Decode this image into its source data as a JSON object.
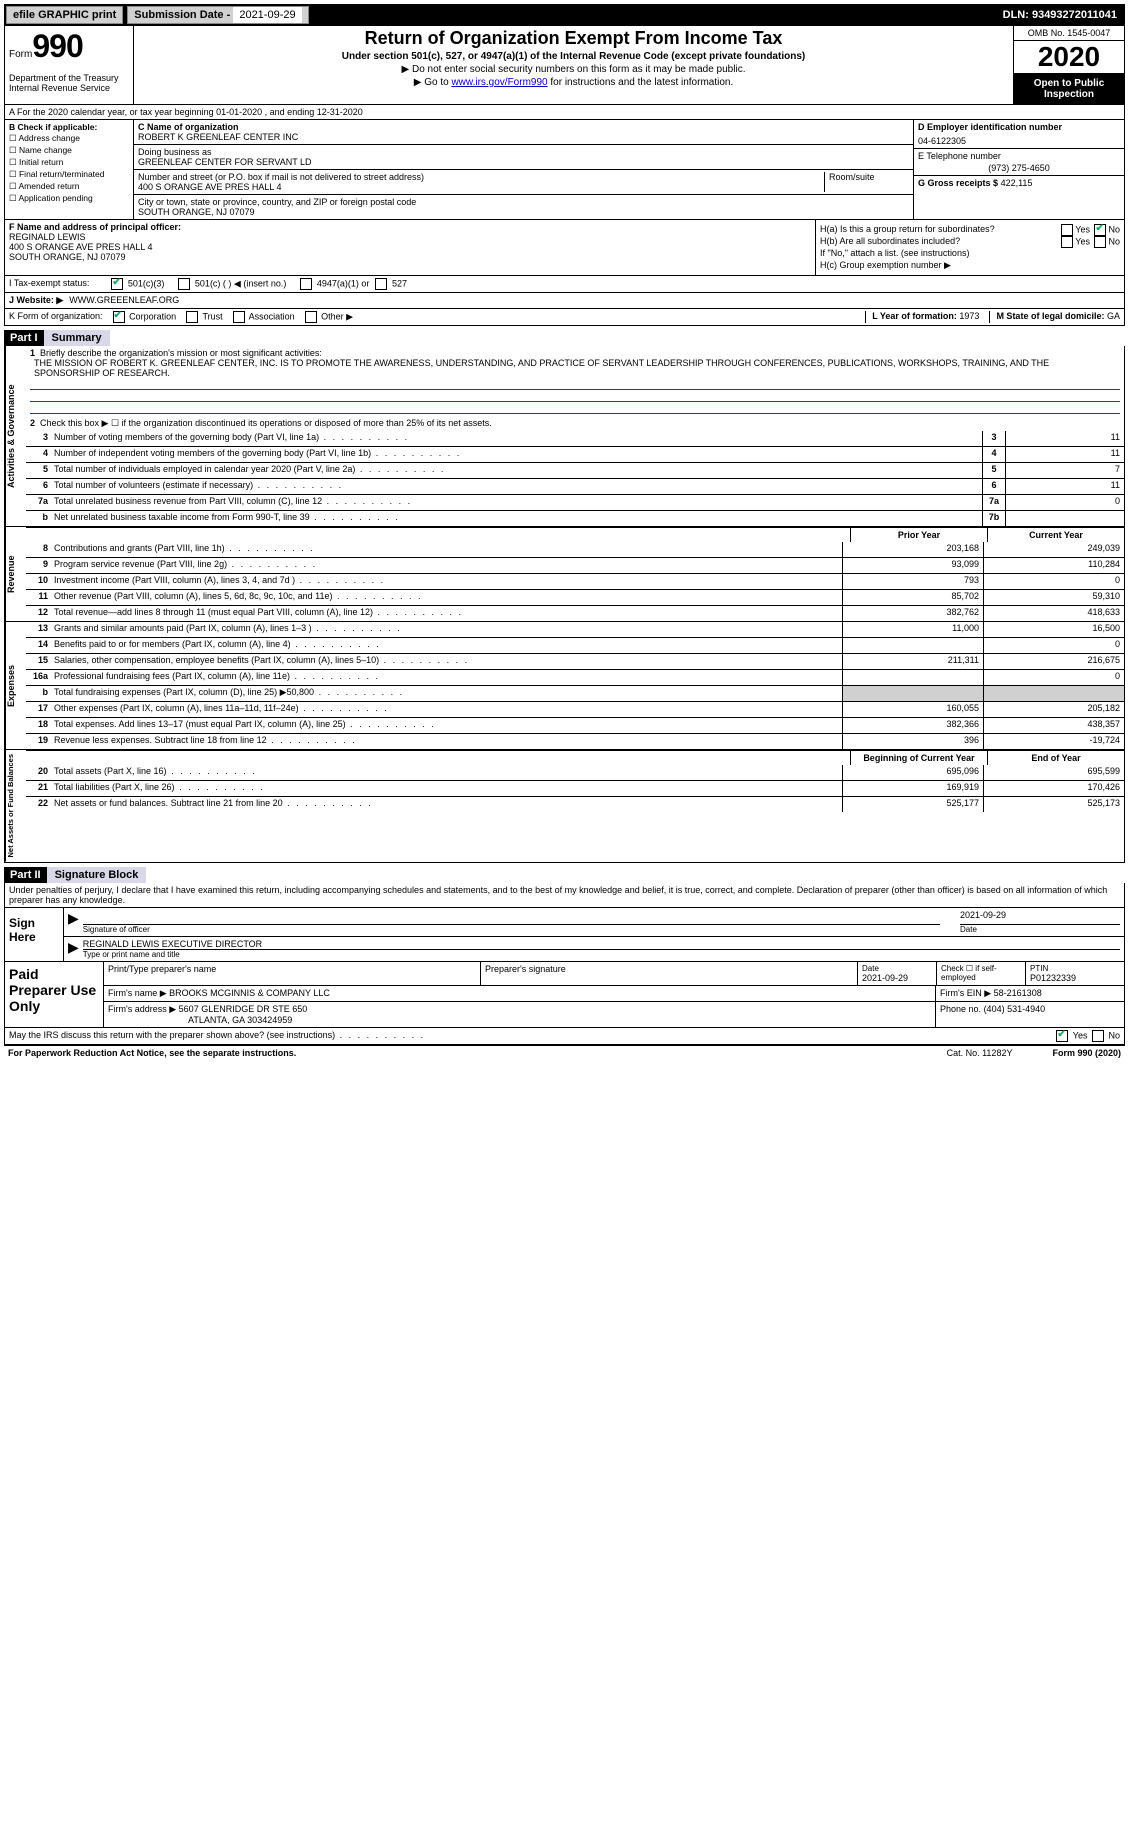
{
  "top": {
    "efile": "efile GRAPHIC print",
    "sub_lbl": "Submission Date - ",
    "sub_date": "2021-09-29",
    "dln_lbl": "DLN: ",
    "dln": "93493272011041"
  },
  "header": {
    "form_word": "Form",
    "form_num": "990",
    "dept": "Department of the Treasury\nInternal Revenue Service",
    "title": "Return of Organization Exempt From Income Tax",
    "sub": "Under section 501(c), 527, or 4947(a)(1) of the Internal Revenue Code (except private foundations)",
    "note1": "▶ Do not enter social security numbers on this form as it may be made public.",
    "note2_pre": "▶ Go to ",
    "note2_link": "www.irs.gov/Form990",
    "note2_post": " for instructions and the latest information.",
    "omb": "OMB No. 1545-0047",
    "year": "2020",
    "open_pub": "Open to Public Inspection"
  },
  "a_line": "A For the 2020 calendar year, or tax year beginning 01-01-2020   , and ending 12-31-2020",
  "b": {
    "hdr": "B Check if applicable:",
    "opts": [
      "Address change",
      "Name change",
      "Initial return",
      "Final return/terminated",
      "Amended return",
      "Application pending"
    ]
  },
  "c": {
    "name_lbl": "C Name of organization",
    "name": "ROBERT K GREENLEAF CENTER INC",
    "dba_lbl": "Doing business as",
    "dba": "GREENLEAF CENTER FOR SERVANT LD",
    "addr_lbl": "Number and street (or P.O. box if mail is not delivered to street address)",
    "addr": "400 S ORANGE AVE PRES HALL 4",
    "room_lbl": "Room/suite",
    "city_lbl": "City or town, state or province, country, and ZIP or foreign postal code",
    "city": "SOUTH ORANGE, NJ  07079"
  },
  "d": {
    "lbl": "D Employer identification number",
    "val": "04-6122305"
  },
  "e": {
    "lbl": "E Telephone number",
    "val": "(973) 275-4650"
  },
  "g": {
    "lbl": "G Gross receipts $",
    "val": "422,115"
  },
  "f": {
    "lbl": "F Name and address of principal officer:",
    "name": "REGINALD LEWIS",
    "addr1": "400 S ORANGE AVE PRES HALL 4",
    "addr2": "SOUTH ORANGE, NJ  07079"
  },
  "h": {
    "a": "H(a)  Is this a group return for subordinates?",
    "b": "H(b)  Are all subordinates included?",
    "note": "If \"No,\" attach a list. (see instructions)",
    "c": "H(c)  Group exemption number ▶"
  },
  "i": {
    "lbl": "I   Tax-exempt status:",
    "o1": "501(c)(3)",
    "o2": "501(c) (  ) ◀ (insert no.)",
    "o3": "4947(a)(1) or",
    "o4": "527"
  },
  "j": {
    "lbl": "J   Website: ▶",
    "val": "WWW.GREEENLEAF.ORG"
  },
  "k": {
    "lbl": "K Form of organization:",
    "o1": "Corporation",
    "o2": "Trust",
    "o3": "Association",
    "o4": "Other ▶"
  },
  "l": {
    "lbl": "L Year of formation:",
    "val": "1973"
  },
  "m": {
    "lbl": "M State of legal domicile:",
    "val": "GA"
  },
  "part1": {
    "hdr": "Part I",
    "title": "Summary",
    "side_ag": "Activities & Governance",
    "side_rev": "Revenue",
    "side_exp": "Expenses",
    "side_na": "Net Assets or Fund Balances",
    "l1_lbl": "Briefly describe the organization's mission or most significant activities:",
    "l1_txt": "THE MISSION OF ROBERT K. GREENLEAF CENTER, INC. IS TO PROMOTE THE AWARENESS, UNDERSTANDING, AND PRACTICE OF SERVANT LEADERSHIP THROUGH CONFERENCES, PUBLICATIONS, WORKSHOPS, TRAINING, AND THE SPONSORSHIP OF RESEARCH.",
    "l2": "Check this box ▶ ☐  if the organization discontinued its operations or disposed of more than 25% of its net assets.",
    "lines_ag": [
      {
        "n": "3",
        "t": "Number of voting members of the governing body (Part VI, line 1a)",
        "b": "3",
        "v": "11"
      },
      {
        "n": "4",
        "t": "Number of independent voting members of the governing body (Part VI, line 1b)",
        "b": "4",
        "v": "11"
      },
      {
        "n": "5",
        "t": "Total number of individuals employed in calendar year 2020 (Part V, line 2a)",
        "b": "5",
        "v": "7"
      },
      {
        "n": "6",
        "t": "Total number of volunteers (estimate if necessary)",
        "b": "6",
        "v": "11"
      },
      {
        "n": "7a",
        "t": "Total unrelated business revenue from Part VIII, column (C), line 12",
        "b": "7a",
        "v": "0"
      },
      {
        "n": "b",
        "t": "Net unrelated business taxable income from Form 990-T, line 39",
        "b": "7b",
        "v": ""
      }
    ],
    "prior_hdr": "Prior Year",
    "curr_hdr": "Current Year",
    "lines_rev": [
      {
        "n": "8",
        "t": "Contributions and grants (Part VIII, line 1h)",
        "p": "203,168",
        "c": "249,039"
      },
      {
        "n": "9",
        "t": "Program service revenue (Part VIII, line 2g)",
        "p": "93,099",
        "c": "110,284"
      },
      {
        "n": "10",
        "t": "Investment income (Part VIII, column (A), lines 3, 4, and 7d )",
        "p": "793",
        "c": "0"
      },
      {
        "n": "11",
        "t": "Other revenue (Part VIII, column (A), lines 5, 6d, 8c, 9c, 10c, and 11e)",
        "p": "85,702",
        "c": "59,310"
      },
      {
        "n": "12",
        "t": "Total revenue—add lines 8 through 11 (must equal Part VIII, column (A), line 12)",
        "p": "382,762",
        "c": "418,633"
      }
    ],
    "lines_exp": [
      {
        "n": "13",
        "t": "Grants and similar amounts paid (Part IX, column (A), lines 1–3 )",
        "p": "11,000",
        "c": "16,500"
      },
      {
        "n": "14",
        "t": "Benefits paid to or for members (Part IX, column (A), line 4)",
        "p": "",
        "c": "0"
      },
      {
        "n": "15",
        "t": "Salaries, other compensation, employee benefits (Part IX, column (A), lines 5–10)",
        "p": "211,311",
        "c": "216,675"
      },
      {
        "n": "16a",
        "t": "Professional fundraising fees (Part IX, column (A), line 11e)",
        "p": "",
        "c": "0"
      },
      {
        "n": "b",
        "t": "Total fundraising expenses (Part IX, column (D), line 25) ▶50,800",
        "p": "",
        "c": "",
        "grey": true
      },
      {
        "n": "17",
        "t": "Other expenses (Part IX, column (A), lines 11a–11d, 11f–24e)",
        "p": "160,055",
        "c": "205,182"
      },
      {
        "n": "18",
        "t": "Total expenses. Add lines 13–17 (must equal Part IX, column (A), line 25)",
        "p": "382,366",
        "c": "438,357"
      },
      {
        "n": "19",
        "t": "Revenue less expenses. Subtract line 18 from line 12",
        "p": "396",
        "c": "-19,724"
      }
    ],
    "beg_hdr": "Beginning of Current Year",
    "end_hdr": "End of Year",
    "lines_na": [
      {
        "n": "20",
        "t": "Total assets (Part X, line 16)",
        "p": "695,096",
        "c": "695,599"
      },
      {
        "n": "21",
        "t": "Total liabilities (Part X, line 26)",
        "p": "169,919",
        "c": "170,426"
      },
      {
        "n": "22",
        "t": "Net assets or fund balances. Subtract line 21 from line 20",
        "p": "525,177",
        "c": "525,173"
      }
    ]
  },
  "part2": {
    "hdr": "Part II",
    "title": "Signature Block",
    "decl": "Under penalties of perjury, I declare that I have examined this return, including accompanying schedules and statements, and to the best of my knowledge and belief, it is true, correct, and complete. Declaration of preparer (other than officer) is based on all information of which preparer has any knowledge.",
    "sign_lbl": "Sign Here",
    "sig_of": "Signature of officer",
    "sig_date": "2021-09-29",
    "date_lbl": "Date",
    "officer": "REGINALD LEWIS  EXECUTIVE DIRECTOR",
    "type_lbl": "Type or print name and title"
  },
  "prep": {
    "lbl": "Paid Preparer Use Only",
    "r1": {
      "c1": "Print/Type preparer's name",
      "c2": "Preparer's signature",
      "c3_lbl": "Date",
      "c3": "2021-09-29",
      "c4": "Check ☐ if self-employed",
      "c5_lbl": "PTIN",
      "c5": "P01232339"
    },
    "r2": {
      "c1_lbl": "Firm's name    ▶",
      "c1": "BROOKS MCGINNIS & COMPANY LLC",
      "c2_lbl": "Firm's EIN ▶",
      "c2": "58-2161308"
    },
    "r3": {
      "c1_lbl": "Firm's address ▶",
      "c1a": "5607 GLENRIDGE DR STE 650",
      "c1b": "ATLANTA, GA  303424959",
      "c2_lbl": "Phone no.",
      "c2": "(404) 531-4940"
    }
  },
  "may_irs": "May the IRS discuss this return with the preparer shown above? (see instructions)",
  "footer": {
    "l": "For Paperwork Reduction Act Notice, see the separate instructions.",
    "m": "Cat. No. 11282Y",
    "r": "Form 990 (2020)"
  },
  "yes": "Yes",
  "no": "No"
}
